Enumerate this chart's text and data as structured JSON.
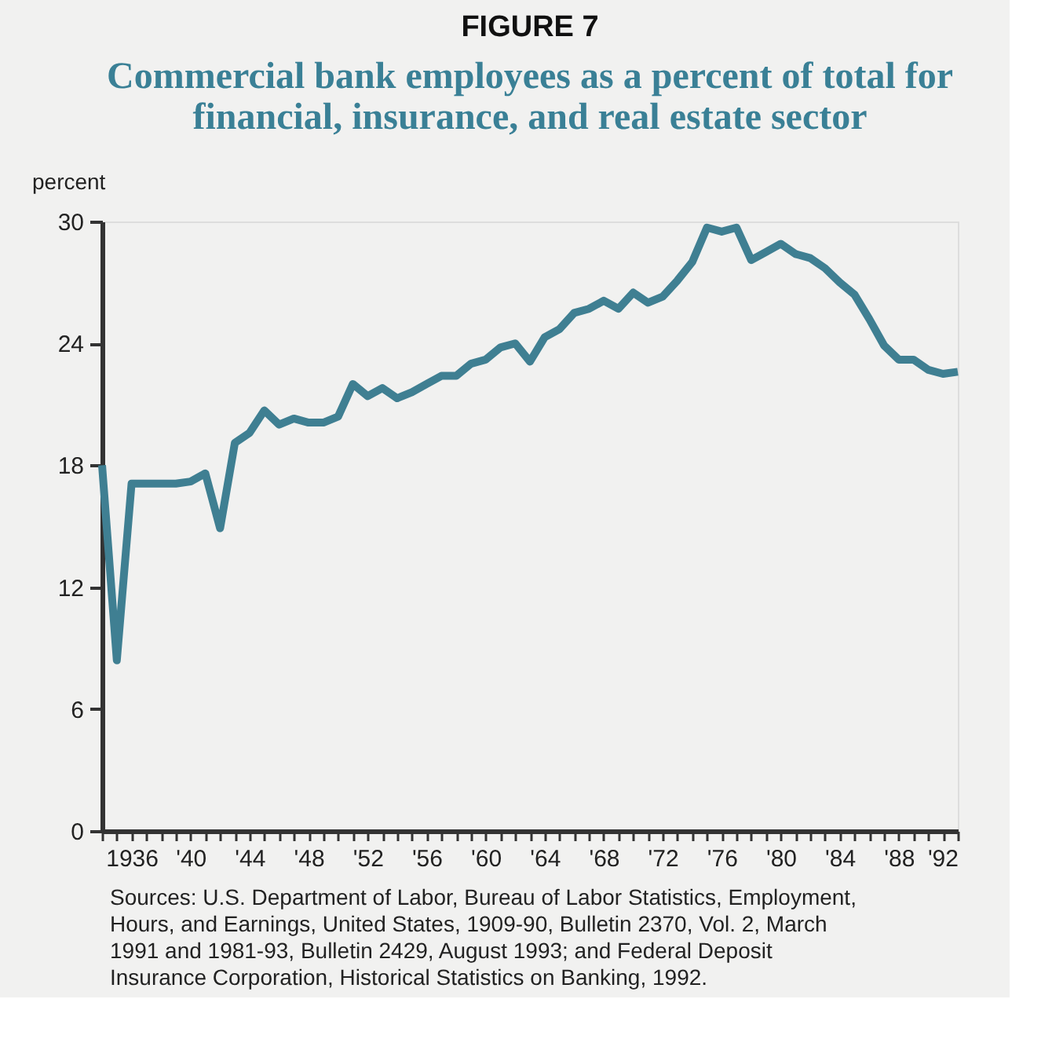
{
  "chart_data": {
    "type": "line",
    "title": "FIGURE 7",
    "subtitle": "Commercial bank employees as a percent of total for financial, insurance, and real estate sector",
    "ylabel": "percent",
    "x": [
      1934,
      1935,
      1936,
      1937,
      1938,
      1939,
      1940,
      1941,
      1942,
      1943,
      1944,
      1945,
      1946,
      1947,
      1948,
      1949,
      1950,
      1951,
      1952,
      1953,
      1954,
      1955,
      1956,
      1957,
      1958,
      1959,
      1960,
      1961,
      1962,
      1963,
      1964,
      1965,
      1966,
      1967,
      1968,
      1969,
      1970,
      1971,
      1972,
      1973,
      1974,
      1975,
      1976,
      1977,
      1978,
      1979,
      1980,
      1981,
      1982,
      1983,
      1984,
      1985,
      1986,
      1987,
      1988,
      1989,
      1990,
      1991,
      1992
    ],
    "series": [
      {
        "color": "#3f7f92",
        "values": [
          18.0,
          8.4,
          17.1,
          17.1,
          17.1,
          17.1,
          17.2,
          17.6,
          14.9,
          19.1,
          19.6,
          20.7,
          20.0,
          20.3,
          20.1,
          20.1,
          20.4,
          22.0,
          21.4,
          21.8,
          21.3,
          21.6,
          22.0,
          22.4,
          22.4,
          23.0,
          23.2,
          23.8,
          24.0,
          23.1,
          24.3,
          24.7,
          25.5,
          25.7,
          26.1,
          25.7,
          26.5,
          26.0,
          26.3,
          27.1,
          28.0,
          29.7,
          29.5,
          29.7,
          28.1,
          28.5,
          28.9,
          28.4,
          28.2,
          27.7,
          27.0,
          26.4,
          25.2,
          23.9,
          23.2,
          23.2,
          22.7,
          22.5,
          22.6
        ]
      }
    ],
    "xlim": [
      1934,
      1992
    ],
    "xticks": [
      {
        "value": 1934,
        "label": null
      },
      {
        "value": 1935,
        "label": null
      },
      1936,
      {
        "value": 1937,
        "label": null
      },
      {
        "value": 1938,
        "label": null
      },
      {
        "value": 1939,
        "label": null
      },
      {
        "value": 1940,
        "label": "'40"
      },
      {
        "value": 1941,
        "label": null
      },
      {
        "value": 1942,
        "label": null
      },
      {
        "value": 1943,
        "label": null
      },
      {
        "value": 1944,
        "label": "'44"
      },
      {
        "value": 1945,
        "label": null
      },
      {
        "value": 1946,
        "label": null
      },
      {
        "value": 1947,
        "label": null
      },
      {
        "value": 1948,
        "label": "'48"
      },
      {
        "value": 1949,
        "label": null
      },
      {
        "value": 1950,
        "label": null
      },
      {
        "value": 1951,
        "label": null
      },
      {
        "value": 1952,
        "label": "'52"
      },
      {
        "value": 1953,
        "label": null
      },
      {
        "value": 1954,
        "label": null
      },
      {
        "value": 1955,
        "label": null
      },
      {
        "value": 1956,
        "label": "'56"
      },
      {
        "value": 1957,
        "label": null
      },
      {
        "value": 1958,
        "label": null
      },
      {
        "value": 1959,
        "label": null
      },
      {
        "value": 1960,
        "label": "'60"
      },
      {
        "value": 1961,
        "label": null
      },
      {
        "value": 1962,
        "label": null
      },
      {
        "value": 1963,
        "label": null
      },
      {
        "value": 1964,
        "label": "'64"
      },
      {
        "value": 1965,
        "label": null
      },
      {
        "value": 1966,
        "label": null
      },
      {
        "value": 1967,
        "label": null
      },
      {
        "value": 1968,
        "label": "'68"
      },
      {
        "value": 1969,
        "label": null
      },
      {
        "value": 1970,
        "label": null
      },
      {
        "value": 1971,
        "label": null
      },
      {
        "value": 1972,
        "label": "'72"
      },
      {
        "value": 1973,
        "label": null
      },
      {
        "value": 1974,
        "label": null
      },
      {
        "value": 1975,
        "label": null
      },
      {
        "value": 1976,
        "label": "'76"
      },
      {
        "value": 1977,
        "label": null
      },
      {
        "value": 1978,
        "label": null
      },
      {
        "value": 1979,
        "label": null
      },
      {
        "value": 1980,
        "label": "'80"
      },
      {
        "value": 1981,
        "label": null
      },
      {
        "value": 1982,
        "label": null
      },
      {
        "value": 1983,
        "label": null
      },
      {
        "value": 1984,
        "label": "'84"
      },
      {
        "value": 1985,
        "label": null
      },
      {
        "value": 1986,
        "label": null
      },
      {
        "value": 1987,
        "label": null
      },
      {
        "value": 1988,
        "label": "'88"
      },
      {
        "value": 1989,
        "label": null
      },
      {
        "value": 1990,
        "label": null
      },
      {
        "value": 1991,
        "label": null
      },
      {
        "value": 1992,
        "label": "'92"
      }
    ],
    "ylim": [
      0,
      30
    ],
    "yticks": [
      0,
      6,
      12,
      18,
      24,
      30
    ],
    "grid": false,
    "line_style": "solid",
    "marker": "none",
    "annotations": [
      "Sources: U.S. Department of Labor, Bureau of Labor Statistics, Employment, Hours, and Earnings, United States, 1909-90, Bulletin 2370, Vol. 2, March 1991 and 1981-93, Bulletin 2429, August 1993; and Federal Deposit Insurance Corporation, Historical Statistics on Banking, 1992."
    ]
  }
}
